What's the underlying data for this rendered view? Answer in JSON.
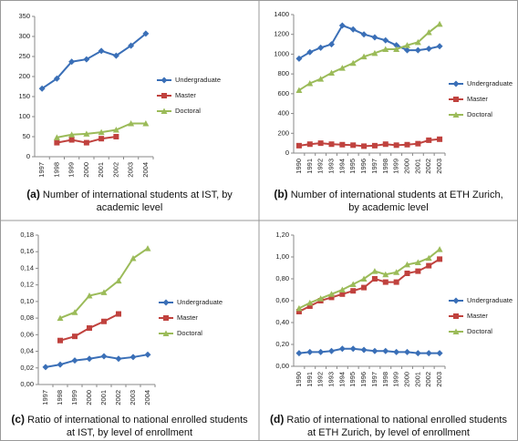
{
  "chart_data": [
    {
      "type": "line",
      "caption_label": "(a)",
      "caption": "Number of international students at IST, by academic level",
      "categories": [
        "1997",
        "1998",
        "1999",
        "2000",
        "2001",
        "2002",
        "2003",
        "2004"
      ],
      "ylim": [
        0,
        350
      ],
      "yticks": [
        0,
        50,
        100,
        150,
        200,
        250,
        300,
        350
      ],
      "series": [
        {
          "name": "Undergraduate",
          "color": "#3a6fb7",
          "marker": "diamond",
          "values": [
            170,
            195,
            237,
            243,
            264,
            252,
            277,
            307
          ]
        },
        {
          "name": "Master",
          "color": "#c0423e",
          "marker": "square",
          "values": [
            null,
            35,
            42,
            35,
            45,
            50,
            null,
            null
          ]
        },
        {
          "name": "Doctoral",
          "color": "#9bbb59",
          "marker": "triangle",
          "values": [
            null,
            48,
            55,
            57,
            61,
            67,
            83,
            83
          ]
        }
      ]
    },
    {
      "type": "line",
      "caption_label": "(b)",
      "caption": "Number of international students at ETH Zurich, by academic level",
      "categories": [
        "1990",
        "1991",
        "1992",
        "1993",
        "1994",
        "1995",
        "1996",
        "1997",
        "1998",
        "1999",
        "2000",
        "2001",
        "2002",
        "2003"
      ],
      "ylim": [
        0,
        1400
      ],
      "yticks": [
        0,
        200,
        400,
        600,
        800,
        1000,
        1200,
        1400
      ],
      "series": [
        {
          "name": "Undergraduate",
          "color": "#3a6fb7",
          "marker": "diamond",
          "values": [
            955,
            1020,
            1065,
            1100,
            1290,
            1250,
            1200,
            1170,
            1140,
            1090,
            1040,
            1040,
            1055,
            1080
          ]
        },
        {
          "name": "Master",
          "color": "#c0423e",
          "marker": "square",
          "values": [
            75,
            90,
            100,
            90,
            85,
            80,
            70,
            75,
            90,
            80,
            85,
            95,
            130,
            140
          ]
        },
        {
          "name": "Doctoral",
          "color": "#9bbb59",
          "marker": "triangle",
          "values": [
            635,
            705,
            750,
            810,
            860,
            910,
            975,
            1010,
            1050,
            1050,
            1090,
            1120,
            1220,
            1305
          ]
        }
      ]
    },
    {
      "type": "line",
      "caption_label": "(c)",
      "caption": "Ratio of international to national enrolled students at IST, by level of enrollment",
      "categories": [
        "1997",
        "1998",
        "1999",
        "2000",
        "2001",
        "2002",
        "2003",
        "2004"
      ],
      "ylim": [
        0,
        0.18
      ],
      "yticks": [
        {
          "value": 0,
          "label": "0,00"
        },
        {
          "value": 0.02,
          "label": "0,02"
        },
        {
          "value": 0.04,
          "label": "0,04"
        },
        {
          "value": 0.06,
          "label": "0,06"
        },
        {
          "value": 0.08,
          "label": "0,08"
        },
        {
          "value": 0.1,
          "label": "0,10"
        },
        {
          "value": 0.12,
          "label": "0,12"
        },
        {
          "value": 0.14,
          "label": "0,14"
        },
        {
          "value": 0.16,
          "label": "0,16"
        },
        {
          "value": 0.18,
          "label": "0,18"
        }
      ],
      "series": [
        {
          "name": "Undergraduate",
          "color": "#3a6fb7",
          "marker": "diamond",
          "values": [
            0.021,
            0.024,
            0.029,
            0.031,
            0.034,
            0.031,
            0.033,
            0.036
          ]
        },
        {
          "name": "Master",
          "color": "#c0423e",
          "marker": "square",
          "values": [
            null,
            0.053,
            0.058,
            0.068,
            0.076,
            0.085,
            null,
            null
          ]
        },
        {
          "name": "Doctoral",
          "color": "#9bbb59",
          "marker": "triangle",
          "values": [
            null,
            0.08,
            0.087,
            0.107,
            0.111,
            0.125,
            0.152,
            0.164
          ]
        }
      ]
    },
    {
      "type": "line",
      "caption_label": "(d)",
      "caption": "Ratio of international to national enrolled students at ETH Zurich, by level of enrollment",
      "categories": [
        "1990",
        "1991",
        "1992",
        "1993",
        "1994",
        "1995",
        "1996",
        "1997",
        "1998",
        "1999",
        "2000",
        "2001",
        "2002",
        "2003"
      ],
      "ylim": [
        0,
        1.2
      ],
      "yticks": [
        {
          "value": 0,
          "label": "0,00"
        },
        {
          "value": 0.2,
          "label": "0,20"
        },
        {
          "value": 0.4,
          "label": "0,40"
        },
        {
          "value": 0.6,
          "label": "0,60"
        },
        {
          "value": 0.8,
          "label": "0,80"
        },
        {
          "value": 1,
          "label": "1,00"
        },
        {
          "value": 1.2,
          "label": "1,20"
        }
      ],
      "series": [
        {
          "name": "Undergraduate",
          "color": "#3a6fb7",
          "marker": "diamond",
          "values": [
            0.12,
            0.13,
            0.13,
            0.14,
            0.16,
            0.16,
            0.15,
            0.14,
            0.14,
            0.13,
            0.13,
            0.12,
            0.12,
            0.12
          ]
        },
        {
          "name": "Master",
          "color": "#c0423e",
          "marker": "square",
          "values": [
            0.5,
            0.55,
            0.6,
            0.63,
            0.66,
            0.69,
            0.72,
            0.8,
            0.77,
            0.77,
            0.85,
            0.87,
            0.92,
            0.98
          ]
        },
        {
          "name": "Doctoral",
          "color": "#9bbb59",
          "marker": "triangle",
          "values": [
            0.53,
            0.58,
            0.62,
            0.66,
            0.7,
            0.75,
            0.8,
            0.87,
            0.84,
            0.86,
            0.93,
            0.95,
            0.99,
            1.07
          ]
        }
      ]
    }
  ]
}
